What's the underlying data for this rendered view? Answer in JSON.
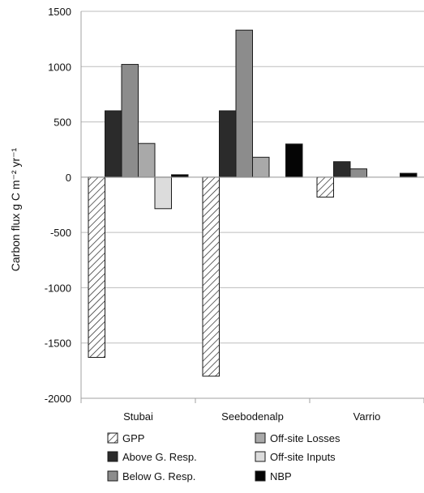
{
  "chart_data": {
    "type": "bar",
    "title": "",
    "xlabel": "",
    "ylabel": "Carbon flux g C m⁻² yr⁻¹",
    "ylim": [
      -2000,
      1500
    ],
    "yticks": [
      -2000,
      -1500,
      -1000,
      -500,
      0,
      500,
      1000,
      1500
    ],
    "ytick_labels": [
      "-2000",
      "-1500",
      "-1000",
      "-500",
      "0",
      "500",
      "1000",
      "1500"
    ],
    "grid": "horizontal",
    "legend_placement": "bottom",
    "categories": [
      "Stubai",
      "Seebodenalp",
      "Varrio"
    ],
    "series": [
      {
        "name": "GPP",
        "values": [
          -1630,
          -1800,
          -180
        ],
        "fill": "hatch",
        "color": "#ffffff"
      },
      {
        "name": "Above G. Resp.",
        "values": [
          600,
          600,
          140
        ],
        "fill": "solid",
        "color": "#2b2b2b"
      },
      {
        "name": "Below G. Resp.",
        "values": [
          1020,
          1330,
          75
        ],
        "fill": "solid",
        "color": "#8c8c8c"
      },
      {
        "name": "Off-site Losses",
        "values": [
          305,
          180,
          null
        ],
        "fill": "solid",
        "color": "#a9a9a9"
      },
      {
        "name": "Off-site Inputs",
        "values": [
          -285,
          null,
          null
        ],
        "fill": "solid",
        "color": "#dcdcdc"
      },
      {
        "name": "NBP",
        "values": [
          22,
          300,
          35
        ],
        "fill": "solid",
        "color": "#050505"
      }
    ],
    "legend": {
      "columns": [
        [
          "GPP",
          "Above G. Resp.",
          "Below G. Resp."
        ],
        [
          "Off-site Losses",
          "Off-site Inputs",
          "NBP"
        ]
      ]
    }
  }
}
